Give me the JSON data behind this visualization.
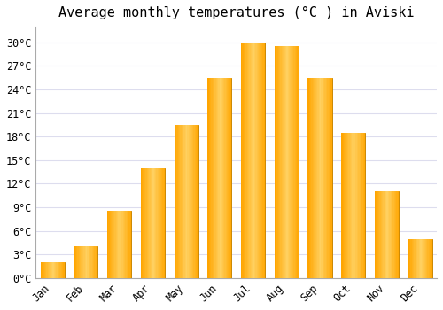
{
  "title": "Average monthly temperatures (°C ) in Aviski",
  "months": [
    "Jan",
    "Feb",
    "Mar",
    "Apr",
    "May",
    "Jun",
    "Jul",
    "Aug",
    "Sep",
    "Oct",
    "Nov",
    "Dec"
  ],
  "values": [
    2,
    4,
    8.5,
    14,
    19.5,
    25.5,
    30,
    29.5,
    25.5,
    18.5,
    11,
    5
  ],
  "bar_color": "#FFA500",
  "bar_color_light": "#FFD060",
  "bar_color_dark": "#E89000",
  "ylim": [
    0,
    32
  ],
  "yticks": [
    0,
    3,
    6,
    9,
    12,
    15,
    18,
    21,
    24,
    27,
    30
  ],
  "ytick_labels": [
    "0°C",
    "3°C",
    "6°C",
    "9°C",
    "12°C",
    "15°C",
    "18°C",
    "21°C",
    "24°C",
    "27°C",
    "30°C"
  ],
  "background_color": "#ffffff",
  "grid_color": "#ddddee",
  "title_fontsize": 11,
  "tick_fontsize": 8.5,
  "bar_edge_color": "#CC8800"
}
